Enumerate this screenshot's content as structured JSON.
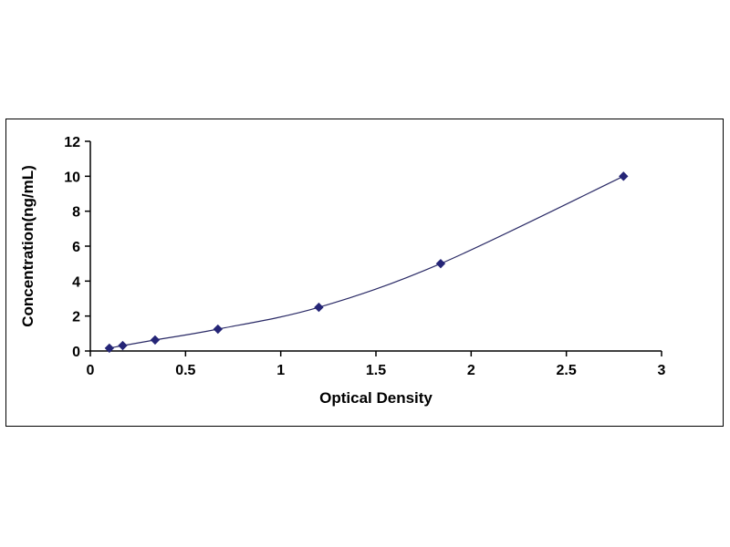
{
  "chart_data": {
    "type": "line",
    "title": "",
    "xlabel": "Optical Density",
    "ylabel": "Concentration(ng/mL)",
    "x": [
      0.1,
      0.17,
      0.34,
      0.67,
      1.2,
      1.84,
      2.8
    ],
    "y": [
      0.16,
      0.31,
      0.63,
      1.25,
      2.5,
      5.0,
      10.0
    ],
    "xlim": [
      0,
      3
    ],
    "ylim": [
      0,
      12
    ],
    "xticks": [
      0,
      0.5,
      1,
      1.5,
      2,
      2.5,
      3
    ],
    "xtick_labels": [
      "0",
      "0.5",
      "1",
      "1.5",
      "2",
      "2.5",
      "3"
    ],
    "yticks": [
      0,
      2,
      4,
      6,
      8,
      10,
      12
    ],
    "ytick_labels": [
      "0",
      "2",
      "4",
      "6",
      "8",
      "10",
      "12"
    ],
    "grid": false,
    "legend": null,
    "marker": "diamond",
    "line_color": "#2a2a66",
    "marker_color": "#252577",
    "axis_color": "#000000",
    "plot_background": "#ffffff"
  }
}
